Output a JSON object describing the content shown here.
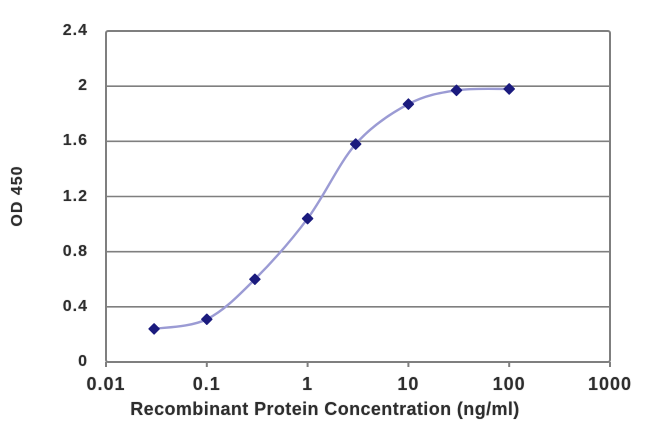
{
  "chart_data": {
    "type": "line",
    "title": "",
    "xlabel": "Recombinant Protein Concentration (ng/ml)",
    "ylabel": "OD 450",
    "x_scale": "log",
    "y_scale": "linear",
    "xlim": [
      0.01,
      1000
    ],
    "ylim": [
      0,
      2.4
    ],
    "x_tick_labels": [
      "0.01",
      "0.1",
      "1",
      "10",
      "100",
      "1000"
    ],
    "x_tick_values": [
      0.01,
      0.1,
      1,
      10,
      100,
      1000
    ],
    "y_tick_labels": [
      "0",
      "0.4",
      "0.8",
      "1.2",
      "1.6",
      "2",
      "2.4"
    ],
    "y_tick_values": [
      0,
      0.4,
      0.8,
      1.2,
      1.6,
      2,
      2.4
    ],
    "grid": "horizontal",
    "legend": "none",
    "marker": "diamond",
    "series": [
      {
        "name": "OD450",
        "x": [
          0.03,
          0.1,
          0.3,
          1,
          3,
          10,
          30,
          100
        ],
        "y": [
          0.24,
          0.31,
          0.6,
          1.04,
          1.58,
          1.87,
          1.97,
          1.98
        ]
      }
    ],
    "colors": {
      "line": "#9b9bd4",
      "marker": "#1b1b7e",
      "grid": "#7f7f7f",
      "border": "#7f7f7f",
      "text": "#2d2d2d",
      "background": "#ffffff"
    }
  }
}
